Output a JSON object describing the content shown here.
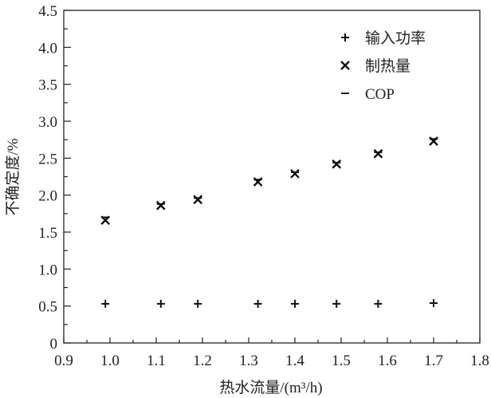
{
  "chart_data": {
    "type": "scatter",
    "title": "",
    "xlabel": "热水流量/(m³/h)",
    "ylabel": "不确定度/%",
    "xlim": [
      0.9,
      1.8
    ],
    "ylim": [
      0,
      4.5
    ],
    "xticks": [
      "0.9",
      "1.0",
      "1.1",
      "1.2",
      "1.3",
      "1.4",
      "1.5",
      "1.6",
      "1.7",
      "1.8"
    ],
    "yticks": [
      "0",
      "0.5",
      "1.0",
      "1.5",
      "2.0",
      "2.5",
      "3.0",
      "3.5",
      "4.0",
      "4.5"
    ],
    "grid": false,
    "legend_position": "top-right",
    "x": [
      0.99,
      1.11,
      1.19,
      1.32,
      1.4,
      1.49,
      1.58,
      1.7
    ],
    "series": [
      {
        "name": "输入功率",
        "marker": "+",
        "values": [
          0.53,
          0.53,
          0.53,
          0.53,
          0.53,
          0.53,
          0.53,
          0.54
        ]
      },
      {
        "name": "制热量",
        "marker": "x",
        "values": [
          1.66,
          1.86,
          1.94,
          2.18,
          2.29,
          2.42,
          2.56,
          2.73
        ]
      },
      {
        "name": "COP",
        "marker": "-",
        "values": [
          1.7,
          1.88,
          1.96,
          2.21,
          2.31,
          2.44,
          2.58,
          2.76
        ]
      }
    ]
  }
}
